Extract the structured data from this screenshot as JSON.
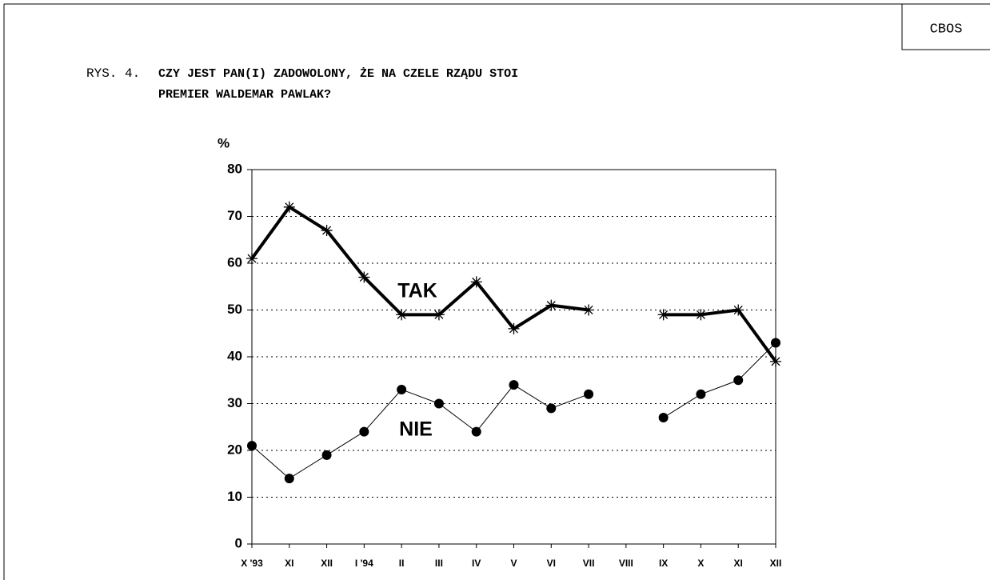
{
  "corner_label": "CBOS",
  "chart_data": {
    "type": "line",
    "figure_label": "RYS. 4.",
    "title": [
      "CZY JEST PAN(I) ZADOWOLONY, ŻE NA CZELE RZĄDU STOI",
      "PREMIER WALDEMAR PAWLAK?"
    ],
    "ylabel": "%",
    "categories": [
      "X '93",
      "XI",
      "XII",
      "I '94",
      "II",
      "III",
      "IV",
      "V",
      "VI",
      "VII",
      "VIII",
      "IX",
      "X",
      "XI",
      "XII"
    ],
    "series": [
      {
        "name": "TAK",
        "color": "#000000",
        "marker": "asterisk",
        "values": [
          61,
          72,
          67,
          57,
          49,
          49,
          56,
          46,
          51,
          50,
          null,
          49,
          49,
          50,
          39
        ]
      },
      {
        "name": "NIE",
        "color": "#000000",
        "marker": "circle",
        "values": [
          21,
          14,
          19,
          24,
          33,
          30,
          24,
          34,
          29,
          32,
          null,
          27,
          32,
          35,
          43
        ]
      }
    ],
    "ylim": [
      0,
      80
    ],
    "yticks": [
      0,
      10,
      20,
      30,
      40,
      50,
      60,
      70,
      80
    ],
    "grid": true
  }
}
